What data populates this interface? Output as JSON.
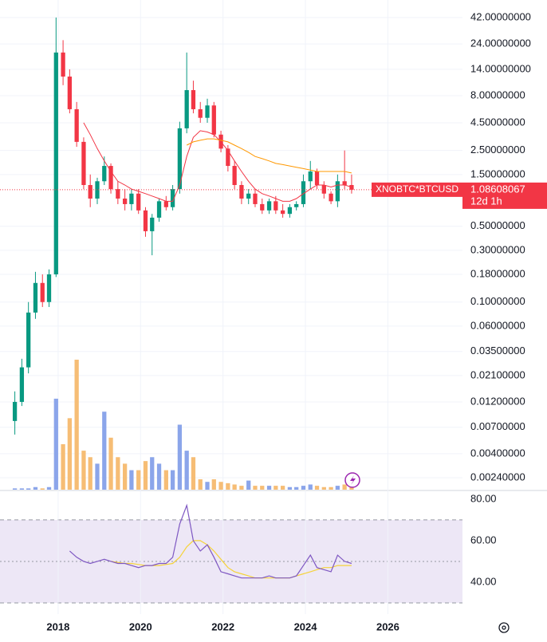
{
  "chart_data": {
    "type": "candlestick",
    "log_scale": true,
    "grid": true,
    "up_color": "#089981",
    "down_color": "#f23645",
    "xlim": [
      2016.59,
      2027.81
    ],
    "xticks": [
      2018,
      2020,
      2022,
      2024,
      2026
    ],
    "ylim": [
      0.00183,
      61
    ],
    "yticks": [
      {
        "value": 42,
        "label": "42.00000000"
      },
      {
        "value": 24,
        "label": "24.00000000"
      },
      {
        "value": 14,
        "label": "14.00000000"
      },
      {
        "value": 8,
        "label": "8.00000000"
      },
      {
        "value": 4.5,
        "label": "4.50000000"
      },
      {
        "value": 2.5,
        "label": "2.50000000"
      },
      {
        "value": 1.5,
        "label": "1.50000000"
      },
      {
        "value": 0.5,
        "label": "0.50000000"
      },
      {
        "value": 0.3,
        "label": "0.30000000"
      },
      {
        "value": 0.18,
        "label": "0.18000000"
      },
      {
        "value": 0.1,
        "label": "0.10000000"
      },
      {
        "value": 0.06,
        "label": "0.06000000"
      },
      {
        "value": 0.035,
        "label": "0.03500000"
      },
      {
        "value": 0.021,
        "label": "0.02100000"
      },
      {
        "value": 0.012,
        "label": "0.01200000"
      },
      {
        "value": 0.007,
        "label": "0.00700000"
      },
      {
        "value": 0.004,
        "label": "0.00400000"
      },
      {
        "value": 0.0024,
        "label": "0.00240000"
      }
    ],
    "x": [
      2016.95,
      2017.12,
      2017.28,
      2017.45,
      2017.62,
      2017.78,
      2017.95,
      2018.12,
      2018.28,
      2018.45,
      2018.62,
      2018.78,
      2018.95,
      2019.12,
      2019.28,
      2019.45,
      2019.62,
      2019.78,
      2019.95,
      2020.12,
      2020.28,
      2020.45,
      2020.62,
      2020.78,
      2020.95,
      2021.12,
      2021.28,
      2021.45,
      2021.62,
      2021.78,
      2021.95,
      2022.12,
      2022.28,
      2022.45,
      2022.62,
      2022.78,
      2022.95,
      2023.12,
      2023.28,
      2023.45,
      2023.62,
      2023.78,
      2023.95,
      2024.12,
      2024.28,
      2024.45,
      2024.62,
      2024.78,
      2024.95,
      2025.12
    ],
    "open": [
      0.008,
      0.012,
      0.025,
      0.08,
      0.15,
      0.1,
      0.18,
      20,
      12,
      6,
      3,
      1.2,
      0.9,
      1.3,
      1.8,
      1.1,
      0.9,
      0.8,
      1.0,
      0.7,
      0.45,
      0.6,
      0.85,
      0.75,
      1.1,
      4,
      9,
      6,
      5,
      6.5,
      3.5,
      2.6,
      1.8,
      1.2,
      0.9,
      1.0,
      0.8,
      0.7,
      0.85,
      0.7,
      0.65,
      0.75,
      0.8,
      1.3,
      1.6,
      1.2,
      1.0,
      0.85,
      1.3,
      1.2
    ],
    "high": [
      0.015,
      0.03,
      0.1,
      0.19,
      0.18,
      0.2,
      42,
      26,
      14,
      7,
      3.3,
      1.5,
      1.4,
      2.2,
      1.9,
      1.3,
      1.1,
      1.1,
      1.1,
      0.75,
      0.65,
      0.9,
      0.95,
      1.2,
      4.6,
      20,
      11,
      7,
      7.5,
      7,
      3.8,
      2.8,
      2.0,
      1.3,
      1.1,
      1.1,
      0.9,
      0.9,
      0.95,
      0.8,
      0.8,
      0.85,
      1.5,
      2.0,
      1.7,
      1.3,
      1.05,
      1.5,
      2.5,
      1.5
    ],
    "low": [
      0.006,
      0.011,
      0.022,
      0.07,
      0.09,
      0.09,
      0.17,
      10,
      5.5,
      2.7,
      1.1,
      0.75,
      0.8,
      1.2,
      1.0,
      0.8,
      0.7,
      0.7,
      0.65,
      0.4,
      0.27,
      0.55,
      0.7,
      0.7,
      1.0,
      3.6,
      5.5,
      4.5,
      4.5,
      3.3,
      2.4,
      1.6,
      1.1,
      0.8,
      0.8,
      0.75,
      0.65,
      0.65,
      0.65,
      0.6,
      0.6,
      0.7,
      0.75,
      1.1,
      1.1,
      0.9,
      0.8,
      0.75,
      1.1,
      1.0
    ],
    "close": [
      0.012,
      0.025,
      0.08,
      0.15,
      0.1,
      0.18,
      20,
      12,
      6,
      3,
      1.2,
      0.9,
      1.3,
      1.8,
      1.1,
      0.9,
      0.8,
      1.0,
      0.7,
      0.45,
      0.6,
      0.85,
      0.75,
      1.1,
      4,
      9,
      6,
      5,
      6.5,
      3.5,
      2.6,
      1.8,
      1.2,
      0.9,
      1.0,
      0.8,
      0.7,
      0.85,
      0.7,
      0.65,
      0.75,
      0.8,
      1.3,
      1.6,
      1.2,
      1.0,
      0.85,
      1.3,
      1.2,
      1.086
    ],
    "moving_averages": [
      {
        "color": "#f23645",
        "values": [
          null,
          null,
          null,
          null,
          null,
          null,
          null,
          null,
          null,
          null,
          4.5,
          3.5,
          2.6,
          2.0,
          1.6,
          1.3,
          1.2,
          1.1,
          1.05,
          1.0,
          0.95,
          0.9,
          0.85,
          0.85,
          1.2,
          2.2,
          3.3,
          3.8,
          3.7,
          3.5,
          3.0,
          2.5,
          2.0,
          1.6,
          1.3,
          1.1,
          1.0,
          0.95,
          0.9,
          0.85,
          0.85,
          0.9,
          1.0,
          1.1,
          1.2,
          1.2,
          1.15,
          1.2,
          1.2,
          1.15
        ]
      },
      {
        "color": "#ff9800",
        "values": [
          null,
          null,
          null,
          null,
          null,
          null,
          null,
          null,
          null,
          null,
          null,
          null,
          null,
          null,
          null,
          null,
          null,
          null,
          null,
          null,
          null,
          null,
          null,
          null,
          null,
          2.8,
          3.0,
          3.1,
          3.2,
          3.2,
          3.1,
          3.0,
          2.8,
          2.6,
          2.4,
          2.2,
          2.1,
          2.0,
          1.9,
          1.85,
          1.8,
          1.75,
          1.7,
          1.65,
          1.6,
          1.6,
          1.6,
          1.6,
          1.6,
          1.55
        ]
      }
    ],
    "volume": {
      "up_color": "#8ba5ea",
      "down_color": "#f6bd75",
      "ylim": [
        0,
        100
      ],
      "values": [
        1,
        1,
        1,
        2,
        1,
        2,
        70,
        35,
        55,
        100,
        30,
        25,
        20,
        60,
        40,
        25,
        20,
        15,
        15,
        22,
        25,
        20,
        15,
        15,
        50,
        30,
        25,
        8,
        6,
        8,
        6,
        5,
        4,
        3,
        7,
        3,
        3,
        3,
        3,
        3,
        2,
        2,
        3,
        4,
        3,
        2,
        2,
        3,
        4,
        2
      ]
    },
    "last_price": {
      "symbol": "XNOBTC*BTCUSD",
      "value": 1.08608067,
      "countdown": "12d 1h",
      "color": "#f23645"
    },
    "rsi": {
      "ylim": [
        24.6,
        84.2
      ],
      "yticks": [
        {
          "value": 80,
          "label": "80.00"
        },
        {
          "value": 60,
          "label": "60.00"
        },
        {
          "value": 40,
          "label": "40.00"
        }
      ],
      "bands": [
        30,
        50,
        70
      ],
      "color": "#7e57c2",
      "ma_color": "#f5d33b",
      "values": [
        null,
        null,
        null,
        null,
        null,
        null,
        null,
        null,
        55,
        52,
        50,
        49,
        50,
        51,
        50,
        49,
        49,
        48,
        47,
        48,
        48,
        49,
        49,
        52,
        68,
        77,
        60,
        55,
        58,
        52,
        45,
        44,
        43,
        42,
        42,
        42,
        42,
        43,
        42,
        42,
        42,
        43,
        48,
        53,
        47,
        46,
        45,
        53,
        50,
        49
      ],
      "ma_values": [
        null,
        null,
        null,
        null,
        null,
        null,
        null,
        null,
        null,
        null,
        null,
        null,
        null,
        null,
        50,
        49.5,
        49,
        49,
        48.5,
        48,
        48,
        48,
        48.5,
        49,
        52,
        57,
        60,
        60,
        58,
        55,
        51,
        47,
        45,
        44,
        43,
        42,
        42,
        42,
        42,
        42,
        42,
        43,
        44,
        45,
        46,
        47,
        47,
        48,
        48,
        48
      ]
    }
  }
}
